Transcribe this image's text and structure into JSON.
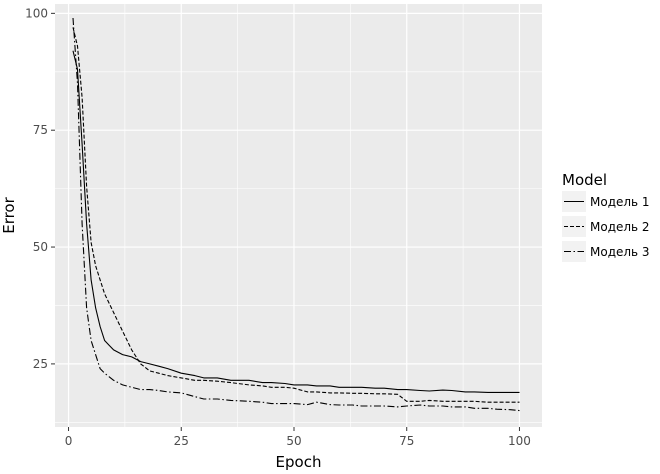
{
  "chart_data": {
    "type": "line",
    "title": "",
    "xlabel": "Epoch",
    "ylabel": "Error",
    "xlim": [
      -3,
      105
    ],
    "ylim": [
      11.5,
      102
    ],
    "xticks": [
      0,
      25,
      50,
      75,
      100
    ],
    "yticks": [
      25,
      50,
      75,
      100
    ],
    "grid": true,
    "legend": {
      "title": "Model",
      "position": "right"
    },
    "colors": {
      "panel": "#ebebeb",
      "grid": "#ffffff",
      "line": "#000000"
    },
    "series": [
      {
        "name": "Модель 1",
        "linestyle": "solid",
        "x": [
          1,
          2,
          3,
          4,
          5,
          6,
          7,
          8,
          9,
          10,
          12,
          14,
          16,
          18,
          20,
          22,
          25,
          28,
          30,
          33,
          36,
          40,
          43,
          45,
          48,
          50,
          53,
          55,
          58,
          60,
          63,
          65,
          68,
          70,
          73,
          75,
          78,
          80,
          83,
          85,
          88,
          90,
          93,
          95,
          98,
          100
        ],
        "y": [
          92,
          88,
          72,
          55,
          43,
          37,
          33,
          30,
          29,
          28,
          27,
          26.5,
          25.5,
          25,
          24.5,
          24,
          23,
          22.5,
          22,
          22,
          21.5,
          21.5,
          21,
          21,
          20.8,
          20.5,
          20.5,
          20.3,
          20.3,
          20,
          20,
          20,
          19.8,
          19.8,
          19.5,
          19.5,
          19.3,
          19.2,
          19.4,
          19.3,
          19,
          19,
          18.9,
          18.9,
          18.9,
          18.9
        ]
      },
      {
        "name": "Модель 2",
        "linestyle": "dashed",
        "x": [
          1,
          2,
          3,
          4,
          5,
          6,
          7,
          8,
          10,
          12,
          14,
          16,
          18,
          20,
          22,
          25,
          28,
          30,
          33,
          36,
          40,
          43,
          45,
          48,
          50,
          53,
          55,
          58,
          60,
          63,
          65,
          68,
          70,
          73,
          75,
          78,
          80,
          83,
          85,
          88,
          90,
          93,
          95,
          98,
          100
        ],
        "y": [
          97,
          93,
          82,
          63,
          51,
          46,
          43,
          40,
          36,
          32,
          28,
          25,
          23.5,
          23,
          22.5,
          22,
          21.5,
          21.5,
          21.3,
          21,
          20.5,
          20.3,
          20,
          20,
          19.8,
          19,
          19,
          18.8,
          18.8,
          18.7,
          18.7,
          18.6,
          18.6,
          18.5,
          17,
          17,
          17.2,
          17,
          17,
          17,
          17,
          16.8,
          16.8,
          16.8,
          16.8
        ]
      },
      {
        "name": "Модель 3",
        "linestyle": "dashdot",
        "x": [
          1,
          2,
          3,
          4,
          5,
          6,
          7,
          8,
          10,
          12,
          14,
          16,
          18,
          20,
          22,
          25,
          28,
          30,
          33,
          36,
          40,
          43,
          45,
          48,
          50,
          53,
          55,
          58,
          60,
          63,
          65,
          68,
          70,
          73,
          75,
          78,
          80,
          83,
          85,
          88,
          90,
          93,
          95,
          98,
          100
        ],
        "y": [
          99,
          85,
          55,
          37,
          30,
          27,
          24,
          23,
          21.5,
          20.5,
          20,
          19.5,
          19.5,
          19.3,
          19,
          18.8,
          18,
          17.5,
          17.5,
          17.2,
          17,
          16.8,
          16.5,
          16.5,
          16.5,
          16.3,
          16.8,
          16.3,
          16.2,
          16.2,
          16,
          16,
          16,
          15.8,
          16,
          16.2,
          16,
          16,
          15.8,
          15.8,
          15.5,
          15.5,
          15.3,
          15.2,
          15
        ]
      }
    ]
  }
}
